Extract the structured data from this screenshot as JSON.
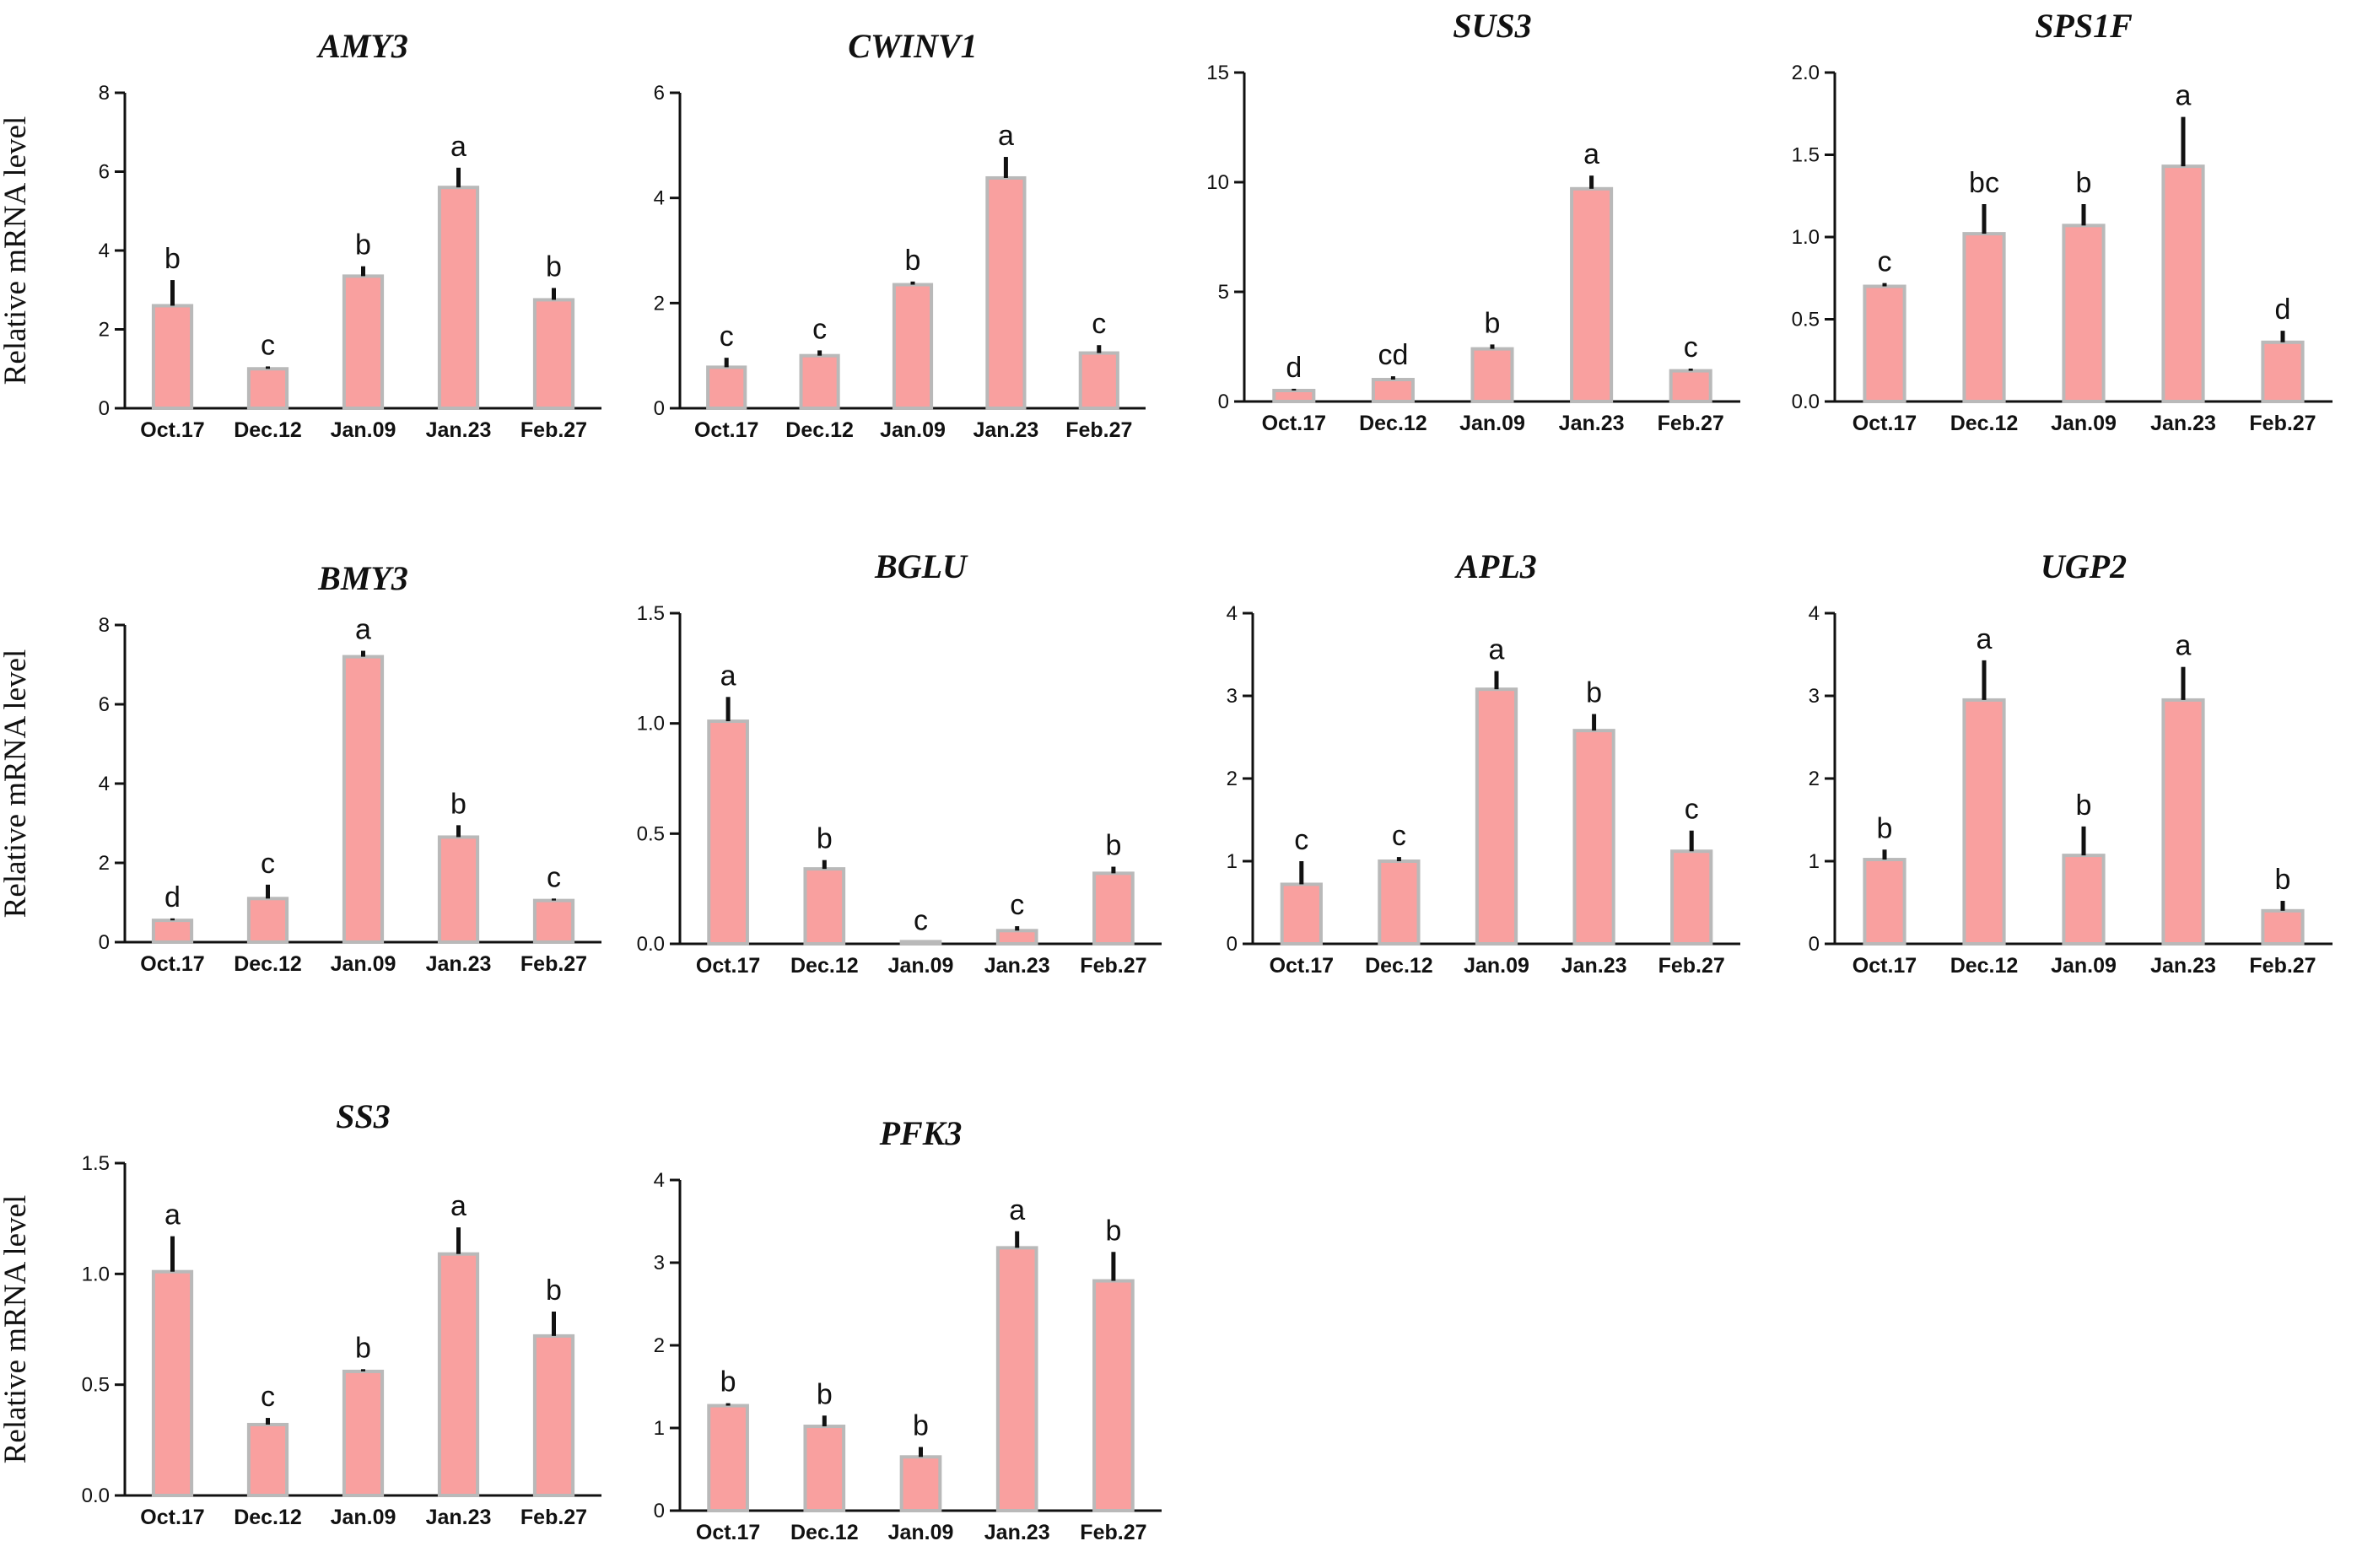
{
  "figure": {
    "ylabel": "Relative mRNA level"
  },
  "colors": {
    "bar": "#F9A09F",
    "bar_edge": "#B9B9B9",
    "error": "#111111",
    "axis": "#111111"
  },
  "chart_data": [
    {
      "type": "bar",
      "title": "AMY3",
      "xlabel": "",
      "ylabel": "Relative mRNA level",
      "categories": [
        "Oct.17",
        "Dec.12",
        "Jan.09",
        "Jan.23",
        "Feb.27"
      ],
      "values": [
        2.6,
        1.0,
        3.35,
        5.6,
        2.75
      ],
      "errors": [
        0.65,
        0.06,
        0.25,
        0.5,
        0.3
      ],
      "letters": [
        "b",
        "c",
        "b",
        "a",
        "b"
      ],
      "ylim": [
        0,
        8
      ],
      "yticks": [
        "0",
        "2",
        "4",
        "6",
        "8"
      ]
    },
    {
      "type": "bar",
      "title": "CWINV1",
      "xlabel": "",
      "ylabel": "",
      "categories": [
        "Oct.17",
        "Dec.12",
        "Jan.09",
        "Jan.23",
        "Feb.27"
      ],
      "values": [
        0.78,
        1.0,
        2.35,
        4.38,
        1.05
      ],
      "errors": [
        0.18,
        0.1,
        0.06,
        0.4,
        0.15
      ],
      "letters": [
        "c",
        "c",
        "b",
        "a",
        "c"
      ],
      "ylim": [
        0,
        6
      ],
      "yticks": [
        "0",
        "2",
        "4",
        "6"
      ]
    },
    {
      "type": "bar",
      "title": "SUS3",
      "xlabel": "",
      "ylabel": "",
      "categories": [
        "Oct.17",
        "Dec.12",
        "Jan.09",
        "Jan.23",
        "Feb.27"
      ],
      "values": [
        0.5,
        1.0,
        2.4,
        9.7,
        1.4
      ],
      "errors": [
        0.08,
        0.15,
        0.2,
        0.6,
        0.1
      ],
      "letters": [
        "d",
        "cd",
        "b",
        "a",
        "c"
      ],
      "ylim": [
        0,
        15
      ],
      "yticks": [
        "0",
        "5",
        "10",
        "15"
      ]
    },
    {
      "type": "bar",
      "title": "SPS1F",
      "xlabel": "",
      "ylabel": "",
      "categories": [
        "Oct.17",
        "Dec.12",
        "Jan.09",
        "Jan.23",
        "Feb.27"
      ],
      "values": [
        0.7,
        1.02,
        1.07,
        1.43,
        0.36
      ],
      "errors": [
        0.02,
        0.18,
        0.13,
        0.3,
        0.07
      ],
      "letters": [
        "c",
        "bc",
        "b",
        "a",
        "d"
      ],
      "ylim": [
        0,
        2
      ],
      "yticks": [
        "0.0",
        "0.5",
        "1.0",
        "1.5",
        "2.0"
      ]
    },
    {
      "type": "bar",
      "title": "BMY3",
      "xlabel": "",
      "ylabel": "Relative mRNA level",
      "categories": [
        "Oct.17",
        "Dec.12",
        "Jan.09",
        "Jan.23",
        "Feb.27"
      ],
      "values": [
        0.55,
        1.1,
        7.2,
        2.65,
        1.05
      ],
      "errors": [
        0.05,
        0.35,
        0.15,
        0.3,
        0.05
      ],
      "letters": [
        "d",
        "c",
        "a",
        "b",
        "c"
      ],
      "ylim": [
        0,
        8
      ],
      "yticks": [
        "0",
        "2",
        "4",
        "6",
        "8"
      ]
    },
    {
      "type": "bar",
      "title": "BGLU",
      "xlabel": "",
      "ylabel": "",
      "categories": [
        "Oct.17",
        "Dec.12",
        "Jan.09",
        "Jan.23",
        "Feb.27"
      ],
      "values": [
        1.01,
        0.34,
        0.01,
        0.06,
        0.32
      ],
      "errors": [
        0.11,
        0.04,
        0.0,
        0.02,
        0.03
      ],
      "letters": [
        "a",
        "b",
        "c",
        "c",
        "b"
      ],
      "ylim": [
        0,
        1.5
      ],
      "yticks": [
        "0.0",
        "0.5",
        "1.0",
        "1.5"
      ]
    },
    {
      "type": "bar",
      "title": "APL3",
      "xlabel": "",
      "ylabel": "",
      "categories": [
        "Oct.17",
        "Dec.12",
        "Jan.09",
        "Jan.23",
        "Feb.27"
      ],
      "values": [
        0.72,
        1.0,
        3.08,
        2.58,
        1.12
      ],
      "errors": [
        0.28,
        0.05,
        0.22,
        0.2,
        0.25
      ],
      "letters": [
        "c",
        "c",
        "a",
        "b",
        "c"
      ],
      "ylim": [
        0,
        4
      ],
      "yticks": [
        "0",
        "1",
        "2",
        "3",
        "4"
      ]
    },
    {
      "type": "bar",
      "title": "UGP2",
      "xlabel": "",
      "ylabel": "",
      "categories": [
        "Oct.17",
        "Dec.12",
        "Jan.09",
        "Jan.23",
        "Feb.27"
      ],
      "values": [
        1.02,
        2.95,
        1.07,
        2.95,
        0.4
      ],
      "errors": [
        0.12,
        0.48,
        0.35,
        0.4,
        0.12
      ],
      "letters": [
        "b",
        "a",
        "b",
        "a",
        "b"
      ],
      "ylim": [
        0,
        4
      ],
      "yticks": [
        "0",
        "1",
        "2",
        "3",
        "4"
      ]
    },
    {
      "type": "bar",
      "title": "SS3",
      "xlabel": "",
      "ylabel": "Relative mRNA level",
      "categories": [
        "Oct.17",
        "Dec.12",
        "Jan.09",
        "Jan.23",
        "Feb.27"
      ],
      "values": [
        1.01,
        0.32,
        0.56,
        1.09,
        0.72
      ],
      "errors": [
        0.16,
        0.03,
        0.01,
        0.12,
        0.11
      ],
      "letters": [
        "a",
        "c",
        "b",
        "a",
        "b"
      ],
      "ylim": [
        0,
        1.5
      ],
      "yticks": [
        "0.0",
        "0.5",
        "1.0",
        "1.5"
      ]
    },
    {
      "type": "bar",
      "title": "PFK3",
      "xlabel": "",
      "ylabel": "",
      "categories": [
        "Oct.17",
        "Dec.12",
        "Jan.09",
        "Jan.23",
        "Feb.27"
      ],
      "values": [
        1.27,
        1.02,
        0.65,
        3.18,
        2.78
      ],
      "errors": [
        0.03,
        0.13,
        0.12,
        0.2,
        0.35
      ],
      "letters": [
        "b",
        "b",
        "b",
        "a",
        "b"
      ],
      "ylim": [
        0,
        4
      ],
      "yticks": [
        "0",
        "1",
        "2",
        "3",
        "4"
      ]
    }
  ]
}
